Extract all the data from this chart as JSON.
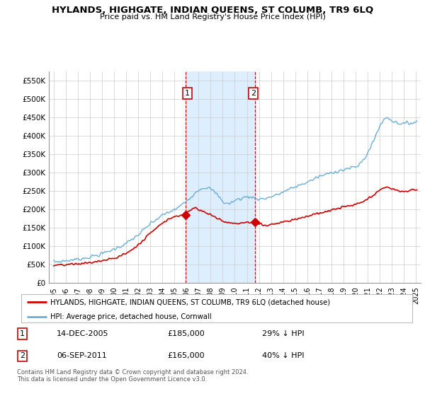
{
  "title": "HYLANDS, HIGHGATE, INDIAN QUEENS, ST COLUMB, TR9 6LQ",
  "subtitle": "Price paid vs. HM Land Registry's House Price Index (HPI)",
  "legend_label1": "HYLANDS, HIGHGATE, INDIAN QUEENS, ST COLUMB, TR9 6LQ (detached house)",
  "legend_label2": "HPI: Average price, detached house, Cornwall",
  "annotation1": {
    "num": "1",
    "date": "14-DEC-2005",
    "price": "£185,000",
    "pct": "29% ↓ HPI"
  },
  "annotation2": {
    "num": "2",
    "date": "06-SEP-2011",
    "price": "£165,000",
    "pct": "40% ↓ HPI"
  },
  "footer": "Contains HM Land Registry data © Crown copyright and database right 2024.\nThis data is licensed under the Open Government Licence v3.0.",
  "hpi_color": "#6baed6",
  "price_color": "#cc0000",
  "shade_color": "#ddeeff",
  "ylim": [
    0,
    575000
  ],
  "yticks": [
    0,
    50000,
    100000,
    150000,
    200000,
    250000,
    300000,
    350000,
    400000,
    450000,
    500000,
    550000
  ],
  "ytick_labels": [
    "£0",
    "£50K",
    "£100K",
    "£150K",
    "£200K",
    "£250K",
    "£300K",
    "£350K",
    "£400K",
    "£450K",
    "£500K",
    "£550K"
  ],
  "shade_x1": 2005.92,
  "shade_x2": 2011.67,
  "mark1_x": 2005.95,
  "mark1_y": 185000,
  "mark2_x": 2011.67,
  "mark2_y": 165000,
  "xlim_left": 1994.6,
  "xlim_right": 2025.4,
  "xticks": [
    1995,
    1996,
    1997,
    1998,
    1999,
    2000,
    2001,
    2002,
    2003,
    2004,
    2005,
    2006,
    2007,
    2008,
    2009,
    2010,
    2011,
    2012,
    2013,
    2014,
    2015,
    2016,
    2017,
    2018,
    2019,
    2020,
    2021,
    2022,
    2023,
    2024,
    2025
  ]
}
